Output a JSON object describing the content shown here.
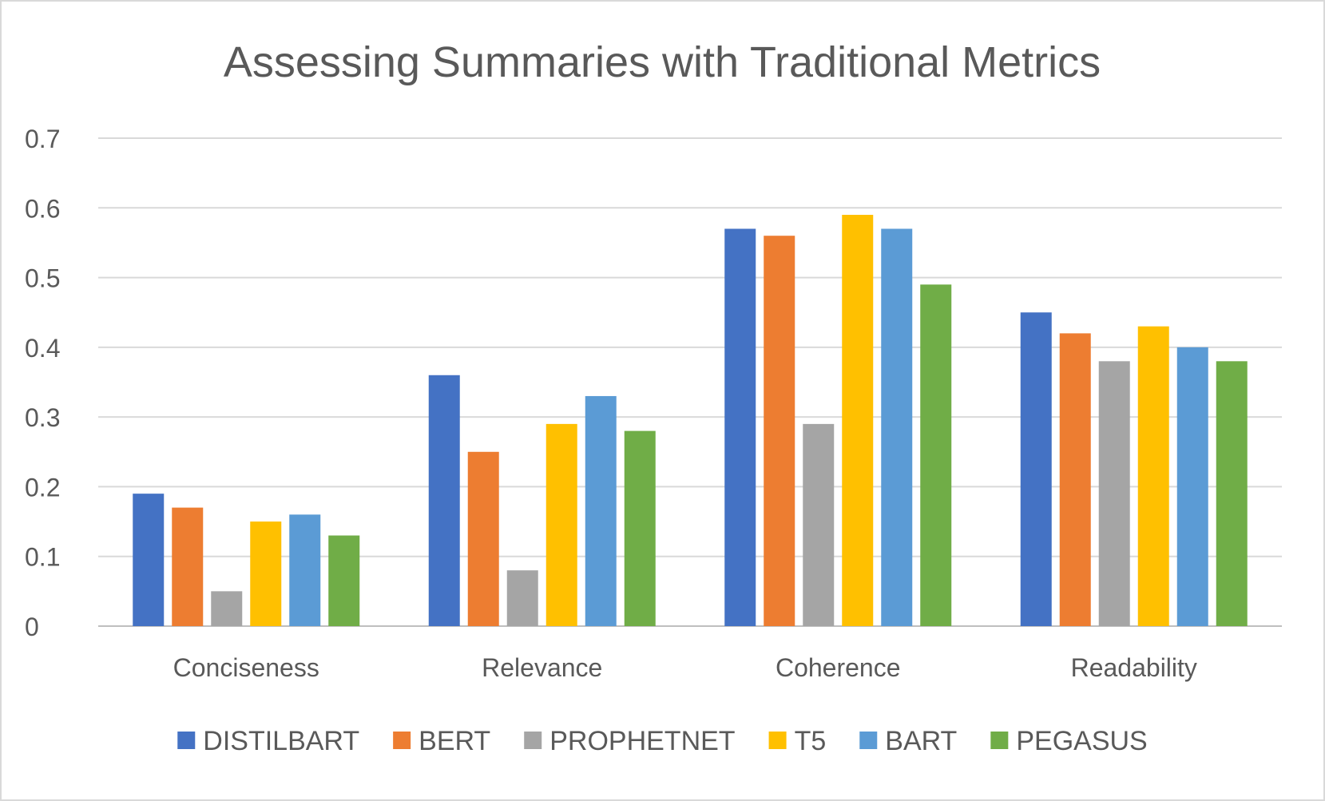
{
  "chart_data": {
    "type": "bar",
    "title": "Assessing Summaries with Traditional Metrics",
    "xlabel": "",
    "ylabel": "",
    "ylim": [
      0,
      0.7
    ],
    "yticks": [
      "0",
      "0.1",
      "0.2",
      "0.3",
      "0.4",
      "0.5",
      "0.6",
      "0.7"
    ],
    "grid": true,
    "legend_position": "bottom",
    "categories": [
      "Conciseness",
      "Relevance",
      "Coherence",
      "Readability"
    ],
    "series": [
      {
        "name": "DISTILBART",
        "color": "#4472C4",
        "values": [
          0.19,
          0.36,
          0.57,
          0.45
        ]
      },
      {
        "name": "BERT",
        "color": "#ED7D31",
        "values": [
          0.17,
          0.25,
          0.56,
          0.42
        ]
      },
      {
        "name": "PROPHETNET",
        "color": "#A5A5A5",
        "values": [
          0.05,
          0.08,
          0.29,
          0.38
        ]
      },
      {
        "name": "T5",
        "color": "#FFC000",
        "values": [
          0.15,
          0.29,
          0.59,
          0.43
        ]
      },
      {
        "name": "BART",
        "color": "#5B9BD5",
        "values": [
          0.16,
          0.33,
          0.57,
          0.4
        ]
      },
      {
        "name": "PEGASUS",
        "color": "#70AD47",
        "values": [
          0.13,
          0.28,
          0.49,
          0.38
        ]
      }
    ]
  }
}
